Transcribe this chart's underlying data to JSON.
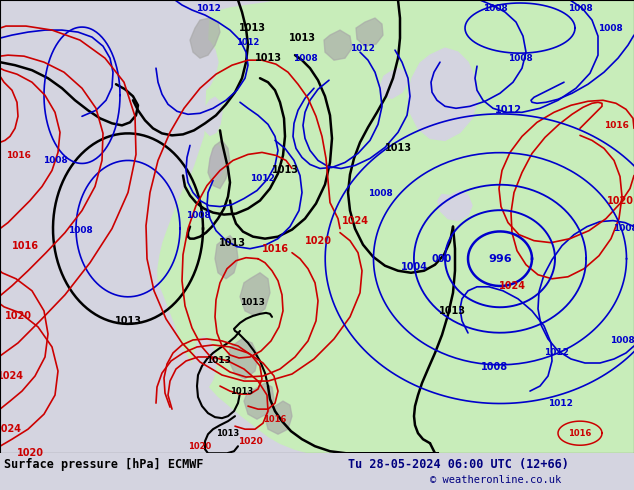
{
  "title_left": "Surface pressure [hPa] ECMWF",
  "title_right": "Tu 28-05-2024 06:00 UTC (12+66)",
  "copyright": "© weatheronline.co.uk",
  "bg_color": "#d4d4e0",
  "land_color": "#c8edba",
  "gray_color": "#a8a8a8",
  "bottom_bar_color": "#e8e8f0",
  "title_color": "#000080",
  "copyright_color": "#000080"
}
